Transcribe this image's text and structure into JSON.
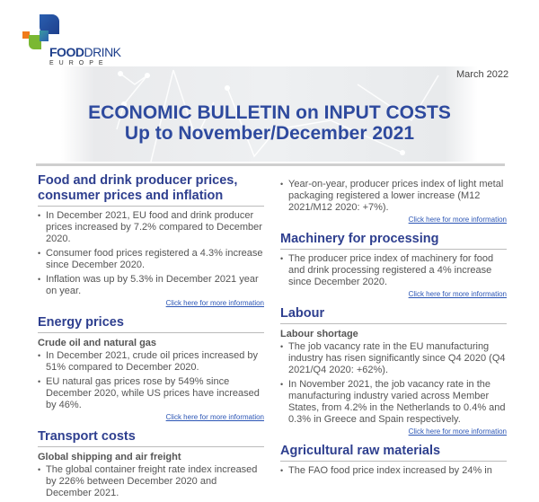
{
  "logo": {
    "name_bold": "FOOD",
    "name_rest": "DRINK",
    "sub": "EUROPE"
  },
  "date": "March 2022",
  "title": {
    "line1": "ECONOMIC BULLETIN on INPUT COSTS",
    "line2": "Up to November/December 2021"
  },
  "link_label": "Click here for more information",
  "left": [
    {
      "heading": "Food and drink producer prices, consumer prices and inflation",
      "subheading": "",
      "bullets": [
        "In December 2021, EU food and drink producer prices increased by 7.2% compared to December 2020.",
        "Consumer food prices registered a 4.3% increase since December 2020.",
        "Inflation was up by 5.3% in December 2021 year on year."
      ],
      "link": true
    },
    {
      "heading": "Energy prices",
      "subheading": "Crude oil and natural gas",
      "bullets": [
        "In December 2021, crude oil prices increased by 51% compared to December 2020.",
        "EU natural gas prices rose by 549% since December 2020, while US prices have increased by 46%."
      ],
      "link": true
    },
    {
      "heading": "Transport costs",
      "subheading": "Global shipping and air freight",
      "bullets": [
        "The global container freight rate index increased by 226% between December 2020 and December 2021."
      ],
      "link": false
    }
  ],
  "right": [
    {
      "heading": "",
      "subheading": "",
      "bullets": [
        "Year-on-year, producer prices index of light metal packaging registered a lower increase (M12 2021/M12 2020: +7%)."
      ],
      "link": true
    },
    {
      "heading": "Machinery for processing",
      "subheading": "",
      "bullets": [
        "The producer price index of machinery for food and drink processing registered a 4% increase since December 2020."
      ],
      "link": true
    },
    {
      "heading": "Labour",
      "subheading": "Labour shortage",
      "bullets": [
        "The job vacancy rate in the EU manufacturing industry has risen significantly since Q4 2020 (Q4 2021/Q4 2020: +62%).",
        "In November 2021, the job vacancy rate in the manufacturing industry varied across Member States, from 4.2% in the Netherlands to 0.4% and 0.3% in Greece and Spain respectively."
      ],
      "link": true
    },
    {
      "heading": "Agricultural raw materials",
      "subheading": "",
      "bullets": [
        "The FAO food price index increased by 24% in"
      ],
      "link": false
    }
  ]
}
